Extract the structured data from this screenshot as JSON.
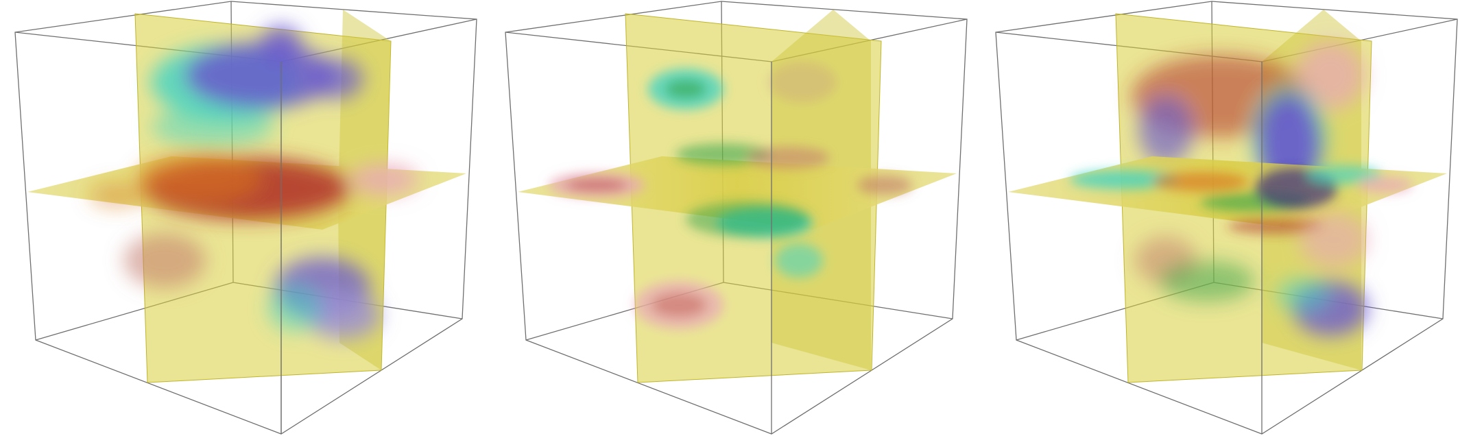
{
  "figure": {
    "panel_count": 3,
    "background": "#ffffff",
    "frame_color": "#6f6f6f",
    "plane_color": "#d8cf3c",
    "colormap": [
      "#6a5acd",
      "#3fd3c4",
      "#2fa24a",
      "#d8cf3c",
      "#d8731f",
      "#b0302a",
      "#e8a7b8"
    ]
  },
  "panels": [
    {
      "id": "left",
      "icon": "volume-slices-icon"
    },
    {
      "id": "middle",
      "icon": "volume-slices-icon"
    },
    {
      "id": "right",
      "icon": "volume-slices-icon"
    }
  ]
}
